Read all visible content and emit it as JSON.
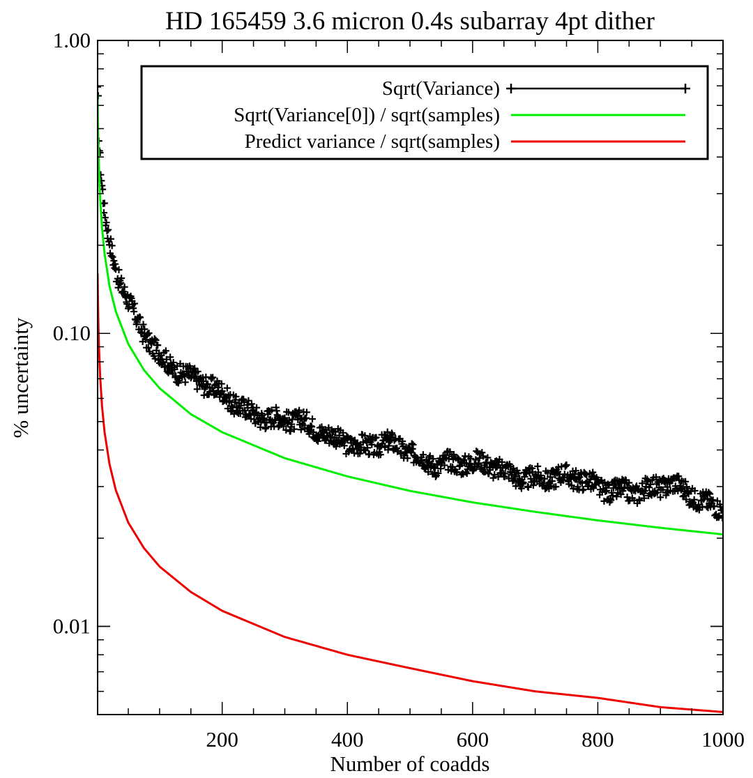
{
  "chart_data": {
    "type": "scatter",
    "title": "HD 165459 3.6 micron 0.4s subarray 4pt dither",
    "xlabel": "Number of coadds",
    "ylabel": "% uncertainty",
    "xlim": [
      1,
      1000
    ],
    "ylim": [
      0.005,
      1.0
    ],
    "yscale": "log",
    "x_tick_labels": [
      "200",
      "400",
      "600",
      "800",
      "1000"
    ],
    "y_tick_labels": [
      "0.01",
      "0.10",
      "1.00"
    ],
    "grid": false,
    "legend_position": "top-right",
    "series": [
      {
        "name": "Sqrt(Variance)",
        "kind": "scatter",
        "marker": "plus",
        "color": "#000000",
        "note_formula_equivalent": "noisy points scattered around 0.87/sqrt(N)",
        "points": [
          [
            1,
            0.65
          ],
          [
            2,
            0.6
          ],
          [
            3,
            0.48
          ],
          [
            4,
            0.42
          ],
          [
            5,
            0.38
          ],
          [
            6,
            0.36
          ],
          [
            7,
            0.33
          ],
          [
            8,
            0.31
          ],
          [
            10,
            0.28
          ],
          [
            12,
            0.25
          ],
          [
            15,
            0.23
          ],
          [
            18,
            0.21
          ],
          [
            20,
            0.2
          ],
          [
            25,
            0.18
          ],
          [
            30,
            0.16
          ],
          [
            35,
            0.15
          ],
          [
            40,
            0.14
          ],
          [
            50,
            0.125
          ],
          [
            60,
            0.113
          ],
          [
            70,
            0.104
          ],
          [
            80,
            0.098
          ],
          [
            90,
            0.092
          ],
          [
            100,
            0.087
          ],
          [
            110,
            0.083
          ],
          [
            120,
            0.079
          ],
          [
            130,
            0.076
          ],
          [
            140,
            0.073
          ],
          [
            150,
            0.07
          ],
          [
            160,
            0.068
          ],
          [
            170,
            0.066
          ],
          [
            180,
            0.064
          ],
          [
            190,
            0.062
          ],
          [
            200,
            0.061
          ],
          [
            220,
            0.058
          ],
          [
            240,
            0.056
          ],
          [
            260,
            0.054
          ],
          [
            280,
            0.052
          ],
          [
            300,
            0.05
          ],
          [
            320,
            0.049
          ],
          [
            340,
            0.047
          ],
          [
            360,
            0.046
          ],
          [
            380,
            0.045
          ],
          [
            400,
            0.044
          ],
          [
            420,
            0.042
          ],
          [
            440,
            0.041
          ],
          [
            460,
            0.041
          ],
          [
            480,
            0.04
          ],
          [
            500,
            0.039
          ],
          [
            520,
            0.038
          ],
          [
            540,
            0.037
          ],
          [
            560,
            0.037
          ],
          [
            580,
            0.036
          ],
          [
            600,
            0.035
          ],
          [
            620,
            0.035
          ],
          [
            640,
            0.034
          ],
          [
            660,
            0.034
          ],
          [
            680,
            0.033
          ],
          [
            700,
            0.033
          ],
          [
            720,
            0.032
          ],
          [
            740,
            0.032
          ],
          [
            760,
            0.031
          ],
          [
            780,
            0.031
          ],
          [
            800,
            0.03
          ],
          [
            820,
            0.03
          ],
          [
            840,
            0.03
          ],
          [
            860,
            0.029
          ],
          [
            880,
            0.029
          ],
          [
            900,
            0.029
          ],
          [
            920,
            0.03
          ],
          [
            940,
            0.029
          ],
          [
            960,
            0.028
          ],
          [
            980,
            0.027
          ],
          [
            1000,
            0.026
          ]
        ]
      },
      {
        "name": "Sqrt(Variance[0]) / sqrt(samples)",
        "kind": "line",
        "color": "#00ee00",
        "points": [
          [
            1,
            0.65
          ],
          [
            2,
            0.46
          ],
          [
            3,
            0.375
          ],
          [
            5,
            0.29
          ],
          [
            8,
            0.23
          ],
          [
            12,
            0.188
          ],
          [
            20,
            0.145
          ],
          [
            30,
            0.119
          ],
          [
            50,
            0.092
          ],
          [
            75,
            0.075
          ],
          [
            100,
            0.065
          ],
          [
            150,
            0.053
          ],
          [
            200,
            0.046
          ],
          [
            300,
            0.0375
          ],
          [
            400,
            0.0325
          ],
          [
            500,
            0.029
          ],
          [
            600,
            0.0265
          ],
          [
            700,
            0.0246
          ],
          [
            800,
            0.023
          ],
          [
            900,
            0.0217
          ],
          [
            1000,
            0.0206
          ]
        ]
      },
      {
        "name": "Predict variance / sqrt(samples)",
        "kind": "line",
        "color": "#ee0000",
        "points": [
          [
            1,
            0.16
          ],
          [
            2,
            0.113
          ],
          [
            3,
            0.092
          ],
          [
            5,
            0.0716
          ],
          [
            8,
            0.0566
          ],
          [
            12,
            0.0462
          ],
          [
            20,
            0.0358
          ],
          [
            30,
            0.0292
          ],
          [
            50,
            0.0226
          ],
          [
            75,
            0.0185
          ],
          [
            100,
            0.016
          ],
          [
            150,
            0.0131
          ],
          [
            200,
            0.0113
          ],
          [
            300,
            0.0092
          ],
          [
            400,
            0.008
          ],
          [
            500,
            0.0072
          ],
          [
            600,
            0.0065
          ],
          [
            700,
            0.006
          ],
          [
            800,
            0.0057
          ],
          [
            900,
            0.0053
          ],
          [
            1000,
            0.0051
          ]
        ]
      }
    ]
  }
}
